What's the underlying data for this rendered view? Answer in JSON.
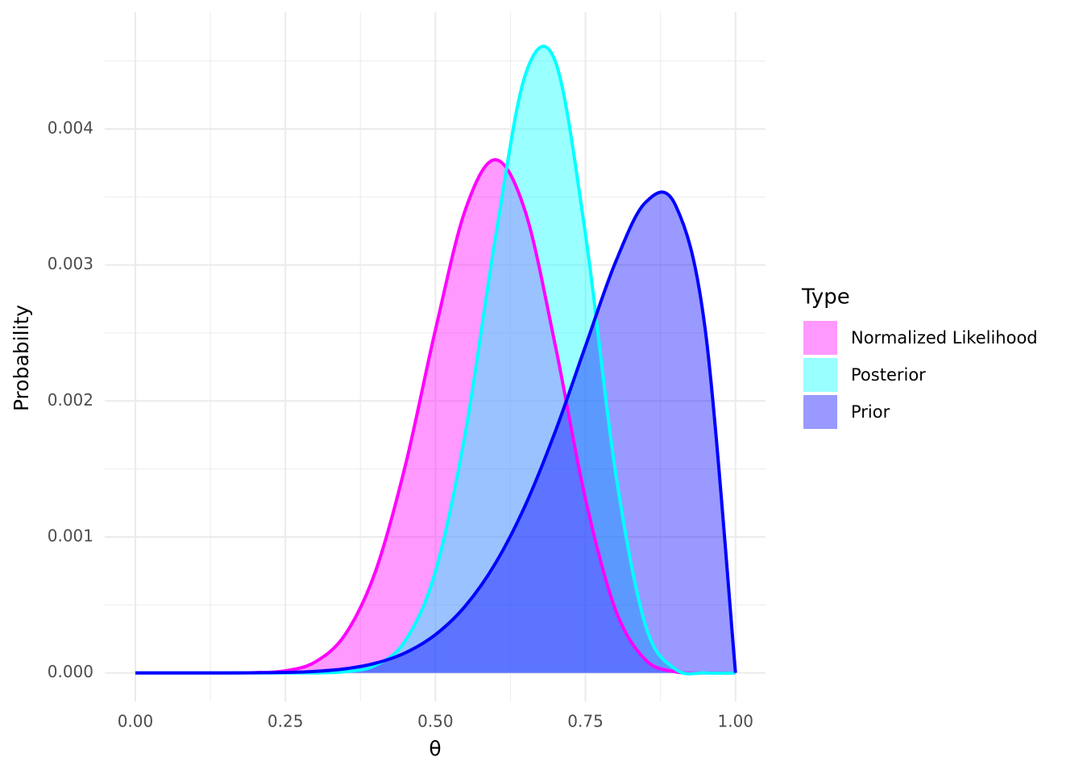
{
  "chart_data": {
    "type": "area",
    "x_label": "θ",
    "y_label": "Probability",
    "legend_title": "Type",
    "x": [
      0,
      0.05,
      0.1,
      0.15,
      0.2,
      0.25,
      0.3,
      0.35,
      0.4,
      0.45,
      0.5,
      0.55,
      0.6,
      0.65,
      0.7,
      0.75,
      0.8,
      0.85,
      0.9,
      0.95,
      1
    ],
    "series": [
      {
        "name": "Normalized Likelihood",
        "color": "#ff00ff",
        "values": [
          0,
          0,
          0,
          0,
          1.8e-06,
          1.58e-05,
          8.1e-05,
          0.000285,
          0.000745,
          0.001528,
          0.002523,
          0.003408,
          0.003774,
          0.003389,
          0.002402,
          0.001279,
          0.000465,
          9.64e-05,
          7.5e-06,
          0,
          0
        ]
      },
      {
        "name": "Posterior",
        "color": "#00ffff",
        "values": [
          0,
          0,
          0,
          0,
          0,
          0,
          0,
          9e-06,
          5.55e-05,
          0.000238,
          0.000746,
          0.001768,
          0.0032,
          0.004402,
          0.004494,
          0.003227,
          0.001478,
          0.000351,
          2.7e-05,
          0,
          0
        ]
      },
      {
        "name": "Prior",
        "color": "#0000ff",
        "values": [
          0,
          0,
          0,
          0,
          7e-07,
          3.3e-06,
          1.1e-05,
          3e-05,
          7.1e-05,
          0.000148,
          0.000281,
          0.000493,
          0.000806,
          0.001235,
          0.001779,
          0.002403,
          0.00302,
          0.00346,
          0.00344,
          0.00251,
          0
        ]
      }
    ],
    "xlim": [
      -0.051,
      1.05
    ],
    "ylim": [
      -0.00021,
      0.00486
    ],
    "xticks": [
      {
        "value": 0,
        "label": "0.00"
      },
      {
        "value": 0.25,
        "label": "0.25"
      },
      {
        "value": 0.5,
        "label": "0.50"
      },
      {
        "value": 0.75,
        "label": "0.75"
      },
      {
        "value": 1,
        "label": "1.00"
      }
    ],
    "yticks": [
      {
        "value": 0,
        "label": "0.000"
      },
      {
        "value": 0.001,
        "label": "0.001"
      },
      {
        "value": 0.002,
        "label": "0.002"
      },
      {
        "value": 0.003,
        "label": "0.003"
      },
      {
        "value": 0.004,
        "label": "0.004"
      }
    ],
    "grid": true
  }
}
